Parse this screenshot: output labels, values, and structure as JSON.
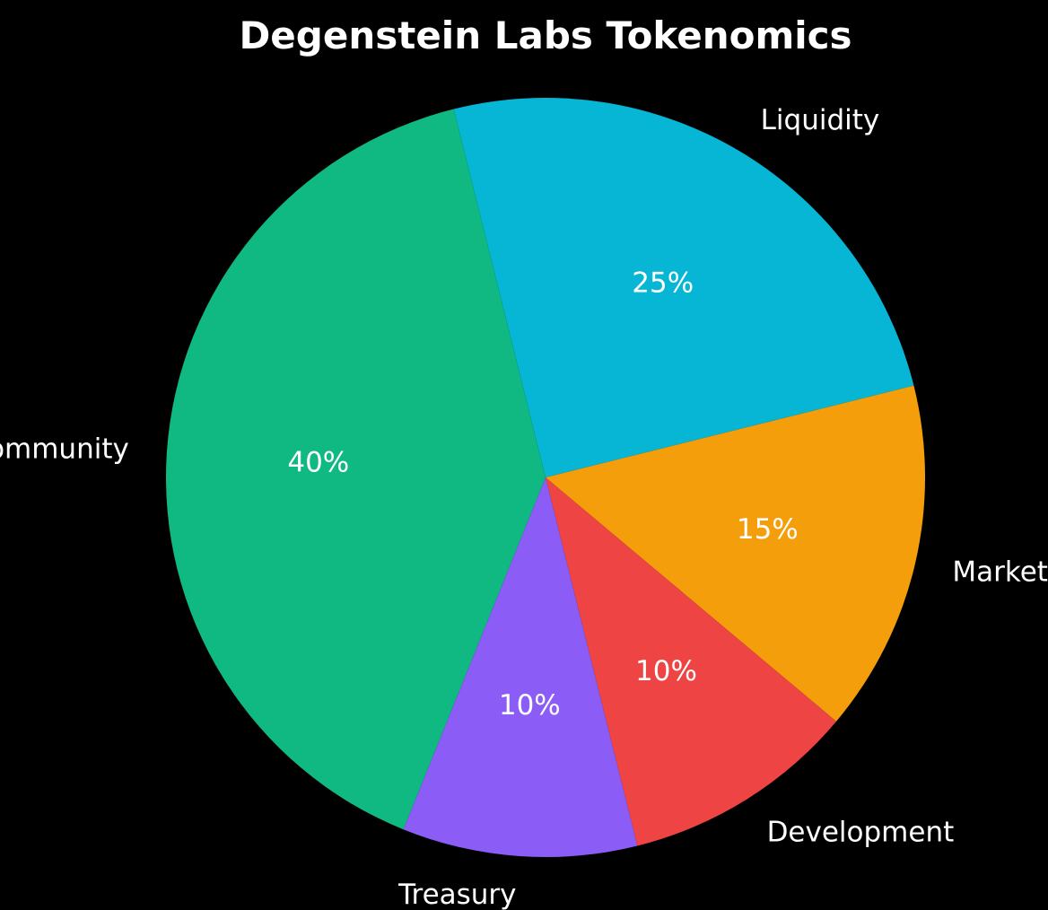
{
  "chart_data": {
    "type": "pie",
    "title": "Degenstein Labs Tokenomics",
    "start_angle_deg": 104,
    "direction": "clockwise",
    "slices": [
      {
        "label": "Liquidity",
        "value": 25,
        "pct_label": "25%",
        "color": "#06b6d4"
      },
      {
        "label": "Marketing",
        "value": 15,
        "pct_label": "15%",
        "color": "#f59e0b"
      },
      {
        "label": "Development",
        "value": 10,
        "pct_label": "10%",
        "color": "#ef4444"
      },
      {
        "label": "Treasury",
        "value": 10,
        "pct_label": "10%",
        "color": "#8b5cf6"
      },
      {
        "label": "Community",
        "value": 40,
        "pct_label": "40%",
        "color": "#10b981"
      }
    ]
  }
}
